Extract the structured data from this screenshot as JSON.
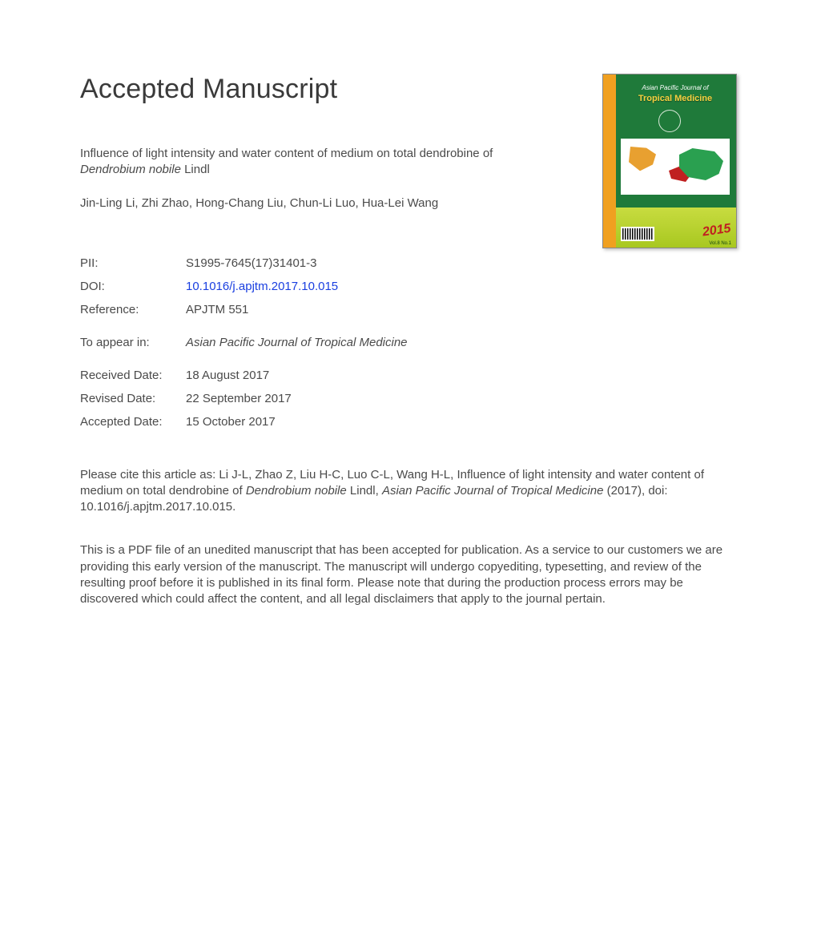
{
  "heading": "Accepted Manuscript",
  "article": {
    "title_part1": "Influence of light intensity and water content of medium on total dendrobine of ",
    "title_species": "Dendrobium nobile",
    "title_part2": " Lindl",
    "authors": "Jin-Ling Li, Zhi Zhao, Hong-Chang Liu, Chun-Li Luo, Hua-Lei Wang"
  },
  "meta": {
    "pii_label": "PII:",
    "pii_value": "S1995-7645(17)31401-3",
    "doi_label": "DOI:",
    "doi_value": "10.1016/j.apjtm.2017.10.015",
    "ref_label": "Reference:",
    "ref_value": "APJTM 551",
    "appear_label": "To appear in:",
    "appear_value": "Asian Pacific Journal of Tropical Medicine",
    "recv_label": "Received Date:",
    "recv_value": "18 August 2017",
    "rev_label": "Revised Date:",
    "rev_value": "22 September 2017",
    "acc_label": "Accepted Date:",
    "acc_value": "15 October 2017"
  },
  "citation": {
    "part1": "Please cite this article as: Li J-L, Zhao Z, Liu H-C, Luo C-L, Wang H-L, Influence of light intensity and water content of medium on total dendrobine of ",
    "species": "Dendrobium nobile",
    "part2": " Lindl, ",
    "journal": "Asian Pacific Journal of Tropical Medicine",
    "part3": " (2017), doi: 10.1016/j.apjtm.2017.10.015."
  },
  "disclaimer": "This is a PDF file of an unedited manuscript that has been accepted for publication. As a service to our customers we are providing this early version of the manuscript. The manuscript will undergo copyediting, typesetting, and review of the resulting proof before it is published in its final form. Please note that during the production process errors may be discovered which could affect the content, and all legal disclaimers that apply to the journal pertain.",
  "cover": {
    "line1": "Asian Pacific Journal of",
    "line2": "Tropical Medicine",
    "year": "2015",
    "vol": "Vol.8  No.1"
  },
  "colors": {
    "text": "#4a4a4a",
    "link": "#1a3fe0",
    "cover_green": "#1f7a3a",
    "cover_orange_bar": "#f0a020",
    "cover_yellow_text": "#f6d040",
    "cover_bottom": "#c8dc40",
    "cover_year": "#c02020"
  }
}
